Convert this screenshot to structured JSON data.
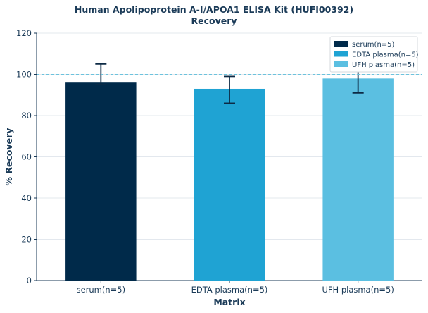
{
  "chart_data": {
    "type": "bar",
    "title_lines": [
      "Human Apolipoprotein A-I/APOA1 ELISA Kit (HUFI00392)",
      "Recovery"
    ],
    "xlabel": "Matrix",
    "ylabel": "% Recovery",
    "categories": [
      "serum(n=5)",
      "EDTA plasma(n=5)",
      "UFH plasma(n=5)"
    ],
    "values": [
      96,
      93,
      98
    ],
    "error_low": [
      95,
      86,
      91
    ],
    "error_high": [
      105,
      99,
      102
    ],
    "colors": [
      "#002a4a",
      "#1fa3d3",
      "#5bbfe1"
    ],
    "ylim": [
      0,
      120
    ],
    "yticks": [
      0,
      20,
      40,
      60,
      80,
      100,
      120
    ],
    "reference_line": 100,
    "grid": "horizontal",
    "legend": {
      "placement": "top-right",
      "entries": [
        "serum(n=5)",
        "EDTA plasma(n=5)",
        "UFH plasma(n=5)"
      ]
    }
  }
}
